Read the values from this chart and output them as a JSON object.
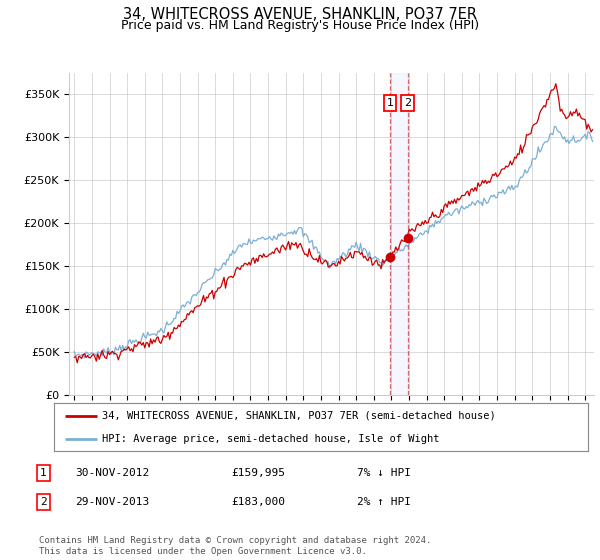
{
  "title": "34, WHITECROSS AVENUE, SHANKLIN, PO37 7ER",
  "subtitle": "Price paid vs. HM Land Registry's House Price Index (HPI)",
  "ylabel_ticks": [
    "£0",
    "£50K",
    "£100K",
    "£150K",
    "£200K",
    "£250K",
    "£300K",
    "£350K"
  ],
  "ytick_values": [
    0,
    50000,
    100000,
    150000,
    200000,
    250000,
    300000,
    350000
  ],
  "ylim": [
    0,
    375000
  ],
  "xlim_start": 1994.7,
  "xlim_end": 2024.5,
  "sale1_date": 2012.917,
  "sale1_price": 159995,
  "sale1_label": "1",
  "sale2_date": 2013.917,
  "sale2_price": 183000,
  "sale2_label": "2",
  "hpi_color": "#7bafd4",
  "price_color": "#cc0000",
  "legend1_text": "34, WHITECROSS AVENUE, SHANKLIN, PO37 7ER (semi-detached house)",
  "legend2_text": "HPI: Average price, semi-detached house, Isle of Wight",
  "table_rows": [
    {
      "num": "1",
      "date": "30-NOV-2012",
      "price": "£159,995",
      "hpi": "7% ↓ HPI"
    },
    {
      "num": "2",
      "date": "29-NOV-2013",
      "price": "£183,000",
      "hpi": "2% ↑ HPI"
    }
  ],
  "footnote": "Contains HM Land Registry data © Crown copyright and database right 2024.\nThis data is licensed under the Open Government Licence v3.0.",
  "background_color": "#ffffff",
  "grid_color": "#cccccc"
}
